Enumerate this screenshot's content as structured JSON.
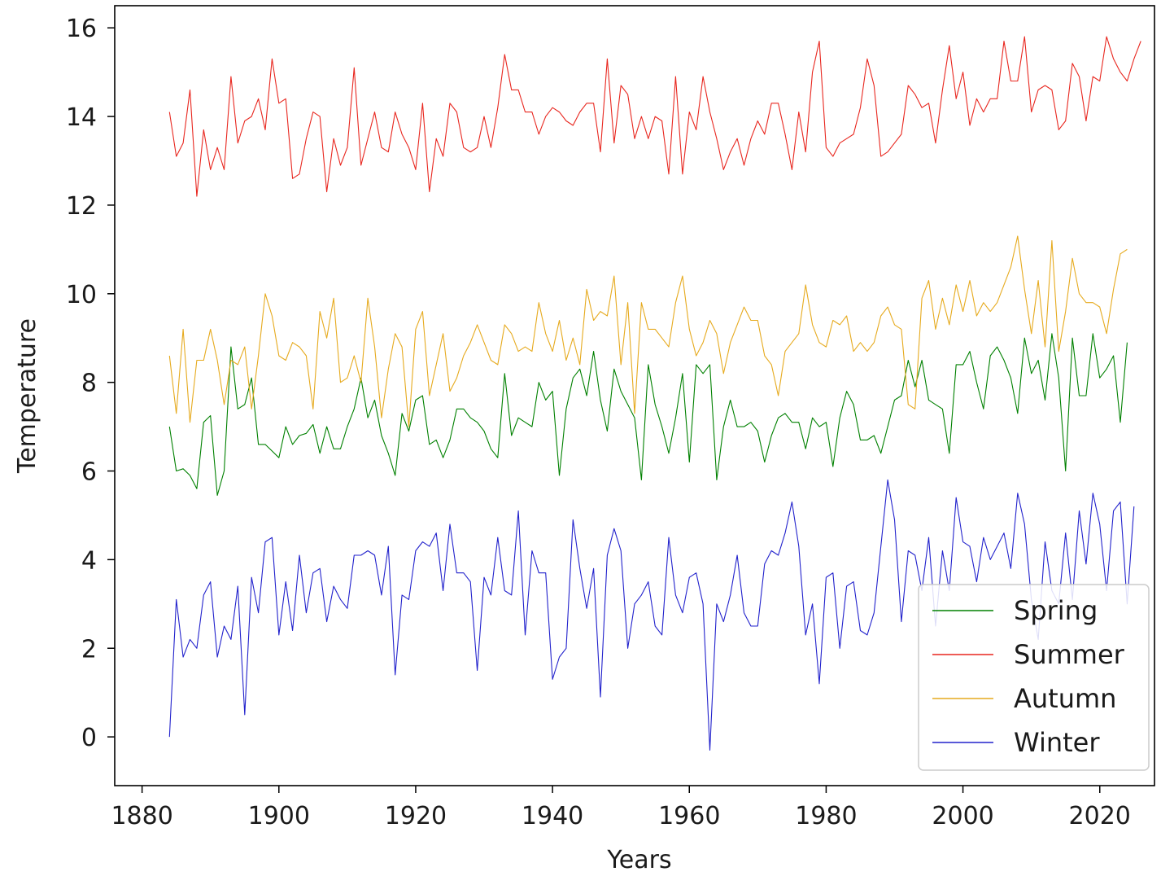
{
  "chart_data": {
    "type": "line",
    "title": "",
    "xlabel": "Years",
    "ylabel": "Temperature",
    "xlim": [
      1876,
      2028
    ],
    "ylim": [
      -1.1,
      16.5
    ],
    "xticks": [
      1880,
      1900,
      1920,
      1940,
      1960,
      1980,
      2000,
      2020
    ],
    "yticks": [
      0,
      2,
      4,
      6,
      8,
      10,
      12,
      14,
      16
    ],
    "grid": false,
    "legend_position": "lower-right",
    "x_start": 1884,
    "series": [
      {
        "name": "Spring",
        "color": "#008000",
        "values": [
          7.0,
          6.0,
          6.05,
          5.9,
          5.6,
          7.1,
          7.25,
          5.45,
          6.0,
          8.8,
          7.4,
          7.5,
          8.1,
          6.6,
          6.6,
          6.45,
          6.3,
          7.0,
          6.6,
          6.8,
          6.85,
          7.05,
          6.4,
          7.0,
          6.5,
          6.5,
          7.0,
          7.4,
          8.1,
          7.2,
          7.6,
          6.8,
          6.4,
          5.9,
          7.3,
          6.9,
          7.6,
          7.7,
          6.6,
          6.7,
          6.3,
          6.7,
          7.4,
          7.4,
          7.2,
          7.1,
          6.9,
          6.5,
          6.3,
          8.2,
          6.8,
          7.2,
          7.1,
          7.0,
          8.0,
          7.6,
          7.8,
          5.9,
          7.4,
          8.1,
          8.3,
          7.7,
          8.7,
          7.6,
          6.9,
          8.3,
          7.8,
          7.5,
          7.2,
          5.8,
          8.4,
          7.5,
          7.0,
          6.4,
          7.2,
          8.2,
          6.2,
          8.4,
          8.2,
          8.4,
          5.8,
          7.0,
          7.6,
          7.0,
          7.0,
          7.1,
          6.9,
          6.2,
          6.8,
          7.2,
          7.3,
          7.1,
          7.1,
          6.5,
          7.2,
          7.0,
          7.1,
          6.1,
          7.2,
          7.8,
          7.5,
          6.7,
          6.7,
          6.8,
          6.4,
          7.0,
          7.6,
          7.7,
          8.5,
          7.9,
          8.5,
          7.6,
          7.5,
          7.4,
          6.4,
          8.4,
          8.4,
          8.7,
          8.0,
          7.4,
          8.6,
          8.8,
          8.5,
          8.1,
          7.3,
          9.0,
          8.2,
          8.5,
          7.6,
          9.1,
          8.1,
          6.0,
          9.0,
          7.7,
          7.7,
          9.1,
          8.1,
          8.3,
          8.6,
          7.1,
          8.9
        ]
      },
      {
        "name": "Summer",
        "color": "#e8271f",
        "values": [
          14.1,
          13.1,
          13.4,
          14.6,
          12.2,
          13.7,
          12.8,
          13.3,
          12.8,
          14.9,
          13.4,
          13.9,
          14.0,
          14.4,
          13.7,
          15.3,
          14.3,
          14.4,
          12.6,
          12.7,
          13.5,
          14.1,
          14.0,
          12.3,
          13.5,
          12.9,
          13.3,
          15.1,
          12.9,
          13.5,
          14.1,
          13.3,
          13.2,
          14.1,
          13.6,
          13.3,
          12.8,
          14.3,
          12.3,
          13.5,
          13.1,
          14.3,
          14.1,
          13.3,
          13.2,
          13.3,
          14.0,
          13.3,
          14.2,
          15.4,
          14.6,
          14.6,
          14.1,
          14.1,
          13.6,
          14.0,
          14.2,
          14.1,
          13.9,
          13.8,
          14.1,
          14.3,
          14.3,
          13.2,
          15.3,
          13.4,
          14.7,
          14.5,
          13.5,
          14.0,
          13.5,
          14.0,
          13.9,
          12.7,
          14.9,
          12.7,
          14.1,
          13.7,
          14.9,
          14.1,
          13.5,
          12.8,
          13.2,
          13.5,
          12.9,
          13.5,
          13.9,
          13.6,
          14.3,
          14.3,
          13.6,
          12.8,
          14.1,
          13.2,
          15.0,
          15.7,
          13.3,
          13.1,
          13.4,
          13.5,
          13.6,
          14.2,
          15.3,
          14.7,
          13.1,
          13.2,
          13.4,
          13.6,
          14.7,
          14.5,
          14.2,
          14.3,
          13.4,
          14.6,
          15.6,
          14.4,
          15.0,
          13.8,
          14.4,
          14.1,
          14.4,
          14.4,
          15.7,
          14.8,
          14.8,
          15.8,
          14.1,
          14.6,
          14.7,
          14.6,
          13.7,
          13.9,
          15.2,
          14.9,
          13.9,
          14.9,
          14.8,
          15.8,
          15.3,
          15.0,
          14.8,
          15.3,
          15.7
        ]
      },
      {
        "name": "Autumn",
        "color": "#e6aa1e",
        "values": [
          8.6,
          7.3,
          9.2,
          7.1,
          8.5,
          8.5,
          9.2,
          8.5,
          7.5,
          8.5,
          8.4,
          8.8,
          7.4,
          8.6,
          10.0,
          9.5,
          8.6,
          8.5,
          8.9,
          8.8,
          8.6,
          7.4,
          9.6,
          9.0,
          9.9,
          8.0,
          8.1,
          8.6,
          8.0,
          9.9,
          8.8,
          7.2,
          8.3,
          9.1,
          8.8,
          7.0,
          9.2,
          9.6,
          7.7,
          8.4,
          9.1,
          7.8,
          8.1,
          8.6,
          8.9,
          9.3,
          8.9,
          8.5,
          8.4,
          9.3,
          9.1,
          8.7,
          8.8,
          8.7,
          9.8,
          9.1,
          8.7,
          9.4,
          8.5,
          9.0,
          8.4,
          10.1,
          9.4,
          9.6,
          9.5,
          10.4,
          8.4,
          9.8,
          7.3,
          9.8,
          9.2,
          9.2,
          9.0,
          8.8,
          9.8,
          10.4,
          9.2,
          8.6,
          8.9,
          9.4,
          9.1,
          8.2,
          8.9,
          9.3,
          9.7,
          9.4,
          9.4,
          8.6,
          8.4,
          7.7,
          8.7,
          8.9,
          9.1,
          10.2,
          9.3,
          8.9,
          8.8,
          9.4,
          9.3,
          9.5,
          8.7,
          8.9,
          8.7,
          8.9,
          9.5,
          9.7,
          9.3,
          9.2,
          7.5,
          7.4,
          9.9,
          10.3,
          9.2,
          9.9,
          9.3,
          10.2,
          9.6,
          10.3,
          9.5,
          9.8,
          9.6,
          9.8,
          10.2,
          10.6,
          11.3,
          10.1,
          9.1,
          10.3,
          8.8,
          11.2,
          8.7,
          9.6,
          10.8,
          10.0,
          9.8,
          9.8,
          9.7,
          9.1,
          10.1,
          10.9,
          11.0
        ]
      },
      {
        "name": "Winter",
        "color": "#2222cc",
        "values": [
          0.0,
          3.1,
          1.8,
          2.2,
          2.0,
          3.2,
          3.5,
          1.8,
          2.5,
          2.2,
          3.4,
          0.5,
          3.6,
          2.8,
          4.4,
          4.5,
          2.3,
          3.5,
          2.4,
          4.1,
          2.8,
          3.7,
          3.8,
          2.6,
          3.4,
          3.1,
          2.9,
          4.1,
          4.1,
          4.2,
          4.1,
          3.2,
          4.3,
          1.4,
          3.2,
          3.1,
          4.2,
          4.4,
          4.3,
          4.6,
          3.3,
          4.8,
          3.7,
          3.7,
          3.5,
          1.5,
          3.6,
          3.2,
          4.5,
          3.3,
          3.2,
          5.1,
          2.3,
          4.2,
          3.7,
          3.7,
          1.3,
          1.8,
          2.0,
          4.9,
          3.8,
          2.9,
          3.8,
          0.9,
          4.1,
          4.7,
          4.2,
          2.0,
          3.0,
          3.2,
          3.5,
          2.5,
          2.3,
          4.5,
          3.2,
          2.8,
          3.6,
          3.7,
          3.0,
          -0.3,
          3.0,
          2.6,
          3.2,
          4.1,
          2.8,
          2.5,
          2.5,
          3.9,
          4.2,
          4.1,
          4.6,
          5.3,
          4.3,
          2.3,
          3.0,
          1.2,
          3.6,
          3.7,
          2.0,
          3.4,
          3.5,
          2.4,
          2.3,
          2.8,
          4.3,
          5.8,
          4.9,
          2.6,
          4.2,
          4.1,
          3.3,
          4.5,
          2.5,
          4.2,
          3.3,
          5.4,
          4.4,
          4.3,
          3.5,
          4.5,
          4.0,
          4.3,
          4.6,
          3.8,
          5.5,
          4.8,
          3.1,
          2.2,
          4.4,
          3.3,
          3.0,
          4.6,
          3.1,
          5.1,
          3.9,
          5.5,
          4.8,
          3.3,
          5.1,
          5.3,
          3.0,
          5.2
        ]
      }
    ]
  }
}
